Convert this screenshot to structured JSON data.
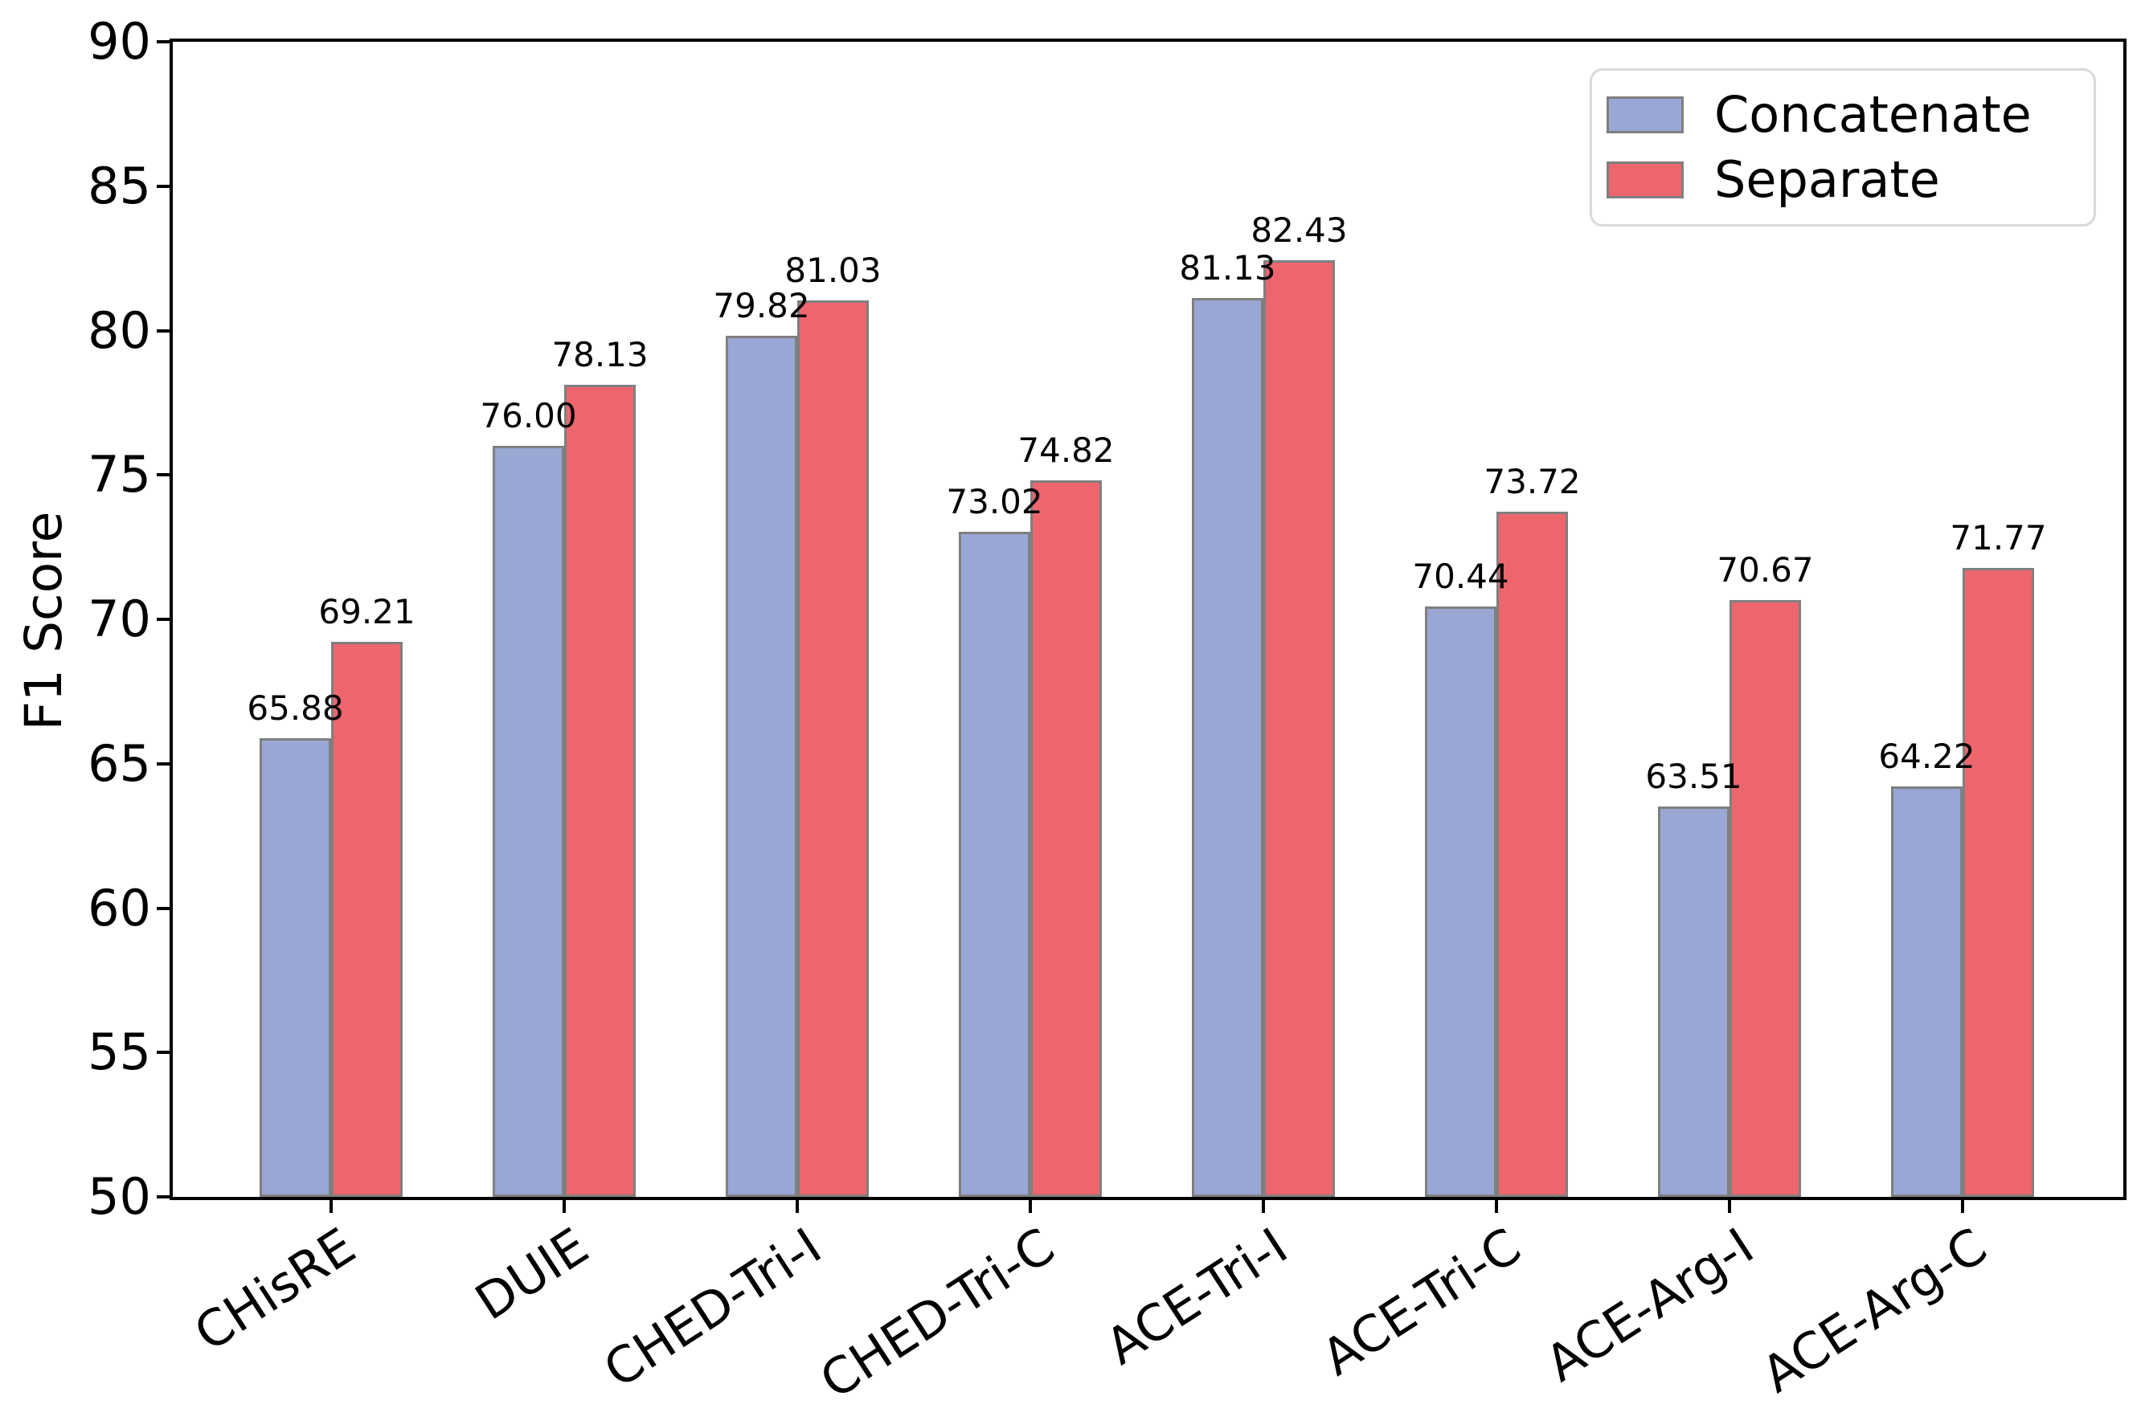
{
  "chart_data": {
    "type": "bar",
    "title": "",
    "xlabel": "",
    "ylabel": "F1 Score",
    "categories": [
      "CHisRE",
      "DUIE",
      "CHED-Tri-I",
      "CHED-Tri-C",
      "ACE-Tri-I",
      "ACE-Tri-C",
      "ACE-Arg-I",
      "ACE-Arg-C"
    ],
    "series": [
      {
        "name": "Concatenate",
        "color": "#9AA7D4",
        "values": [
          65.88,
          76.0,
          79.82,
          73.02,
          81.13,
          70.44,
          63.51,
          64.22
        ]
      },
      {
        "name": "Separate",
        "color": "#ED666E",
        "values": [
          69.21,
          78.13,
          81.03,
          74.82,
          82.43,
          73.72,
          70.67,
          71.77
        ]
      }
    ],
    "value_label_decimals": 2,
    "ylim": [
      50,
      90
    ],
    "yticks": [
      50,
      55,
      60,
      65,
      70,
      75,
      80,
      85,
      90
    ],
    "bar_edge_color": "#7f7f7f",
    "axis_color": "#000000",
    "grid": false,
    "legend": {
      "position": "top-right",
      "border_color": "#d9d9d9",
      "background": "#ffffff"
    }
  }
}
